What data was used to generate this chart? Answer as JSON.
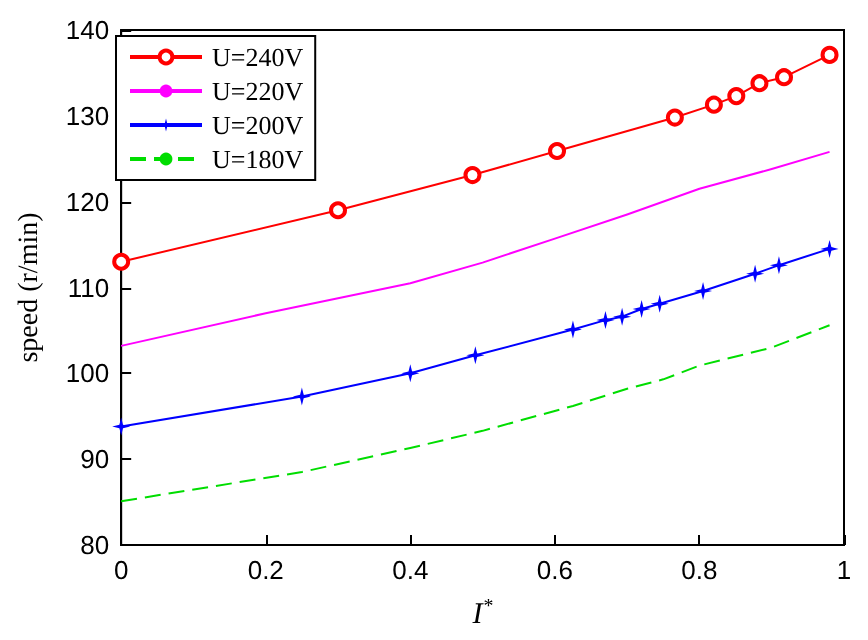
{
  "chart_data": {
    "type": "line",
    "xlabel": "I$^{*}$",
    "ylabel": "speed (r/min)",
    "xlim": [
      0,
      1
    ],
    "xticks": [
      0,
      0.2,
      0.4,
      0.6,
      0.8,
      1
    ],
    "ylim": [
      80,
      140
    ],
    "yticks": [
      80,
      90,
      100,
      110,
      120,
      130,
      140
    ],
    "grid": false,
    "legend": "top left",
    "series": [
      {
        "name": "U=240V",
        "color": "#ff0000",
        "marker": "circle",
        "line_style": "solid",
        "x": [
          0,
          0.3,
          0.486,
          0.603,
          0.766,
          0.82,
          0.851,
          0.883,
          0.917,
          0.98
        ],
        "values": [
          113,
          119,
          123.1,
          125.9,
          129.8,
          131.3,
          132.3,
          133.8,
          134.5,
          137.1
        ]
      },
      {
        "name": "U=220V",
        "color": "#ff00ff",
        "marker": "none",
        "line_style": "solid",
        "x": [
          0,
          0.2,
          0.4,
          0.5,
          0.6,
          0.7,
          0.8,
          0.9,
          0.98
        ],
        "values": [
          103.2,
          107,
          110.5,
          112.9,
          115.7,
          118.5,
          121.5,
          123.8,
          125.8
        ]
      },
      {
        "name": "U=200V",
        "color": "#0000ff",
        "marker": "star",
        "line_style": "solid",
        "x": [
          0,
          0.25,
          0.4,
          0.49,
          0.625,
          0.67,
          0.693,
          0.72,
          0.745,
          0.805,
          0.877,
          0.91,
          0.98
        ],
        "values": [
          93.8,
          97.3,
          100,
          102.1,
          105.1,
          106.2,
          106.6,
          107.5,
          108.1,
          109.6,
          111.6,
          112.6,
          114.5
        ]
      },
      {
        "name": "U=180V",
        "color": "#00dd00",
        "marker": "none",
        "line_style": "dashed",
        "x": [
          0,
          0.25,
          0.4,
          0.5,
          0.625,
          0.7,
          0.75,
          0.8,
          0.9,
          0.98
        ],
        "values": [
          85.1,
          88.5,
          91.3,
          93.3,
          96.2,
          98.2,
          99.3,
          100.9,
          103,
          105.6
        ]
      }
    ]
  }
}
